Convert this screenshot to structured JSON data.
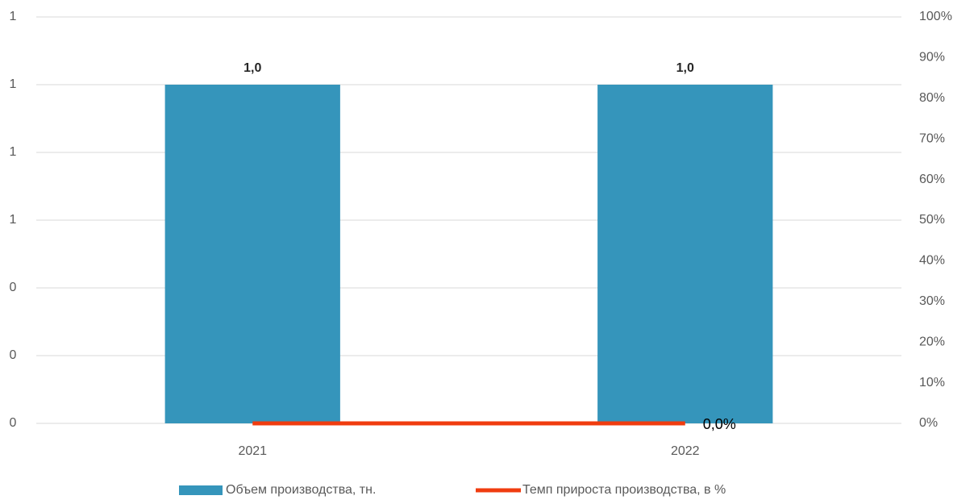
{
  "chart_data": {
    "type": "bar_line",
    "categories": [
      "2021",
      "2022"
    ],
    "series": [
      {
        "name": "Объем производства, тн.",
        "type": "bar",
        "color": "#3595bb",
        "values": [
          1.0,
          1.0
        ],
        "value_labels": [
          "1,0",
          "1,0"
        ]
      },
      {
        "name": "Темп прироста производства, в %",
        "type": "line",
        "axis": "y2",
        "color": "#f03c0f",
        "values": [
          0,
          0
        ],
        "value_labels": [
          null,
          "0,0%"
        ]
      }
    ],
    "ylim": [
      0,
      1.2
    ],
    "yticks": [
      {
        "value": 0,
        "label": "0"
      },
      {
        "value": 0.2,
        "label": "0"
      },
      {
        "value": 0.4,
        "label": "0"
      },
      {
        "value": 0.6,
        "label": "1"
      },
      {
        "value": 0.8,
        "label": "1"
      },
      {
        "value": 1.0,
        "label": "1"
      },
      {
        "value": 1.2,
        "label": "1"
      }
    ],
    "y2lim": [
      0,
      100
    ],
    "y2ticks": [
      {
        "value": 0,
        "label": "0%"
      },
      {
        "value": 10,
        "label": "10%"
      },
      {
        "value": 20,
        "label": "20%"
      },
      {
        "value": 30,
        "label": "30%"
      },
      {
        "value": 40,
        "label": "40%"
      },
      {
        "value": 50,
        "label": "50%"
      },
      {
        "value": 60,
        "label": "60%"
      },
      {
        "value": 70,
        "label": "70%"
      },
      {
        "value": 80,
        "label": "80%"
      },
      {
        "value": 90,
        "label": "90%"
      },
      {
        "value": 100,
        "label": "100%"
      }
    ],
    "grid": true,
    "legend": "bottom"
  }
}
